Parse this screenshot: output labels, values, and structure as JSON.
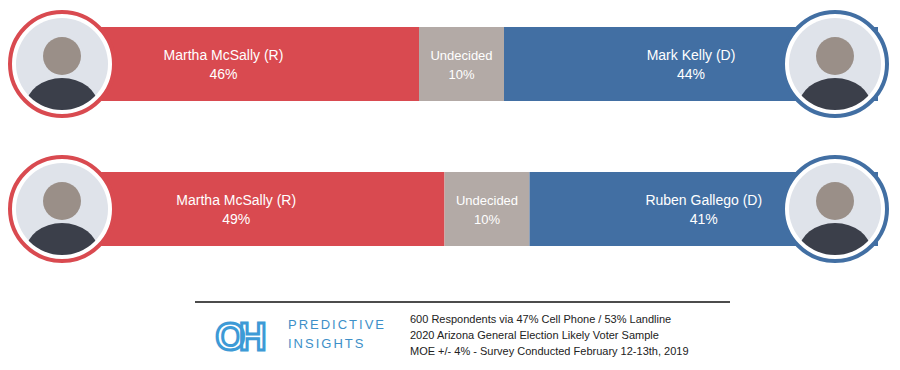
{
  "chart_data": [
    {
      "type": "bar",
      "orientation": "horizontal",
      "stacked": true,
      "data_labels": true,
      "tick_labels": false,
      "categories": [
        null
      ],
      "xlim": [
        0,
        100
      ],
      "series": [
        {
          "name": "Martha McSally (R)",
          "color": "#d94a50",
          "values": [
            46
          ],
          "value_labels": [
            "46%"
          ]
        },
        {
          "name": "Undecided",
          "color": "#b3aaa6",
          "values": [
            10
          ],
          "value_labels": [
            "10%"
          ]
        },
        {
          "name": "Mark Kelly (D)",
          "color": "#426fa3",
          "values": [
            44
          ],
          "value_labels": [
            "44%"
          ]
        }
      ]
    },
    {
      "type": "bar",
      "orientation": "horizontal",
      "stacked": true,
      "data_labels": true,
      "tick_labels": false,
      "categories": [
        null
      ],
      "xlim": [
        0,
        100
      ],
      "series": [
        {
          "name": "Martha McSally (R)",
          "color": "#d94a50",
          "values": [
            49
          ],
          "value_labels": [
            "49%"
          ]
        },
        {
          "name": "Undecided",
          "color": "#b3aaa6",
          "values": [
            10
          ],
          "value_labels": [
            "10%"
          ]
        },
        {
          "name": "Ruben Gallego (D)",
          "color": "#426fa3",
          "values": [
            41
          ],
          "value_labels": [
            "41%"
          ]
        }
      ]
    }
  ],
  "footer": {
    "logo": "OH",
    "brand": [
      "PREDICTIVE",
      "INSIGHTS"
    ],
    "notes": [
      "600 Respondents via 47% Cell Phone / 53% Landline",
      "2020 Arizona General Election Likely Voter Sample",
      "MOE +/- 4% - Survey Conducted February 12-13th, 2019"
    ]
  }
}
